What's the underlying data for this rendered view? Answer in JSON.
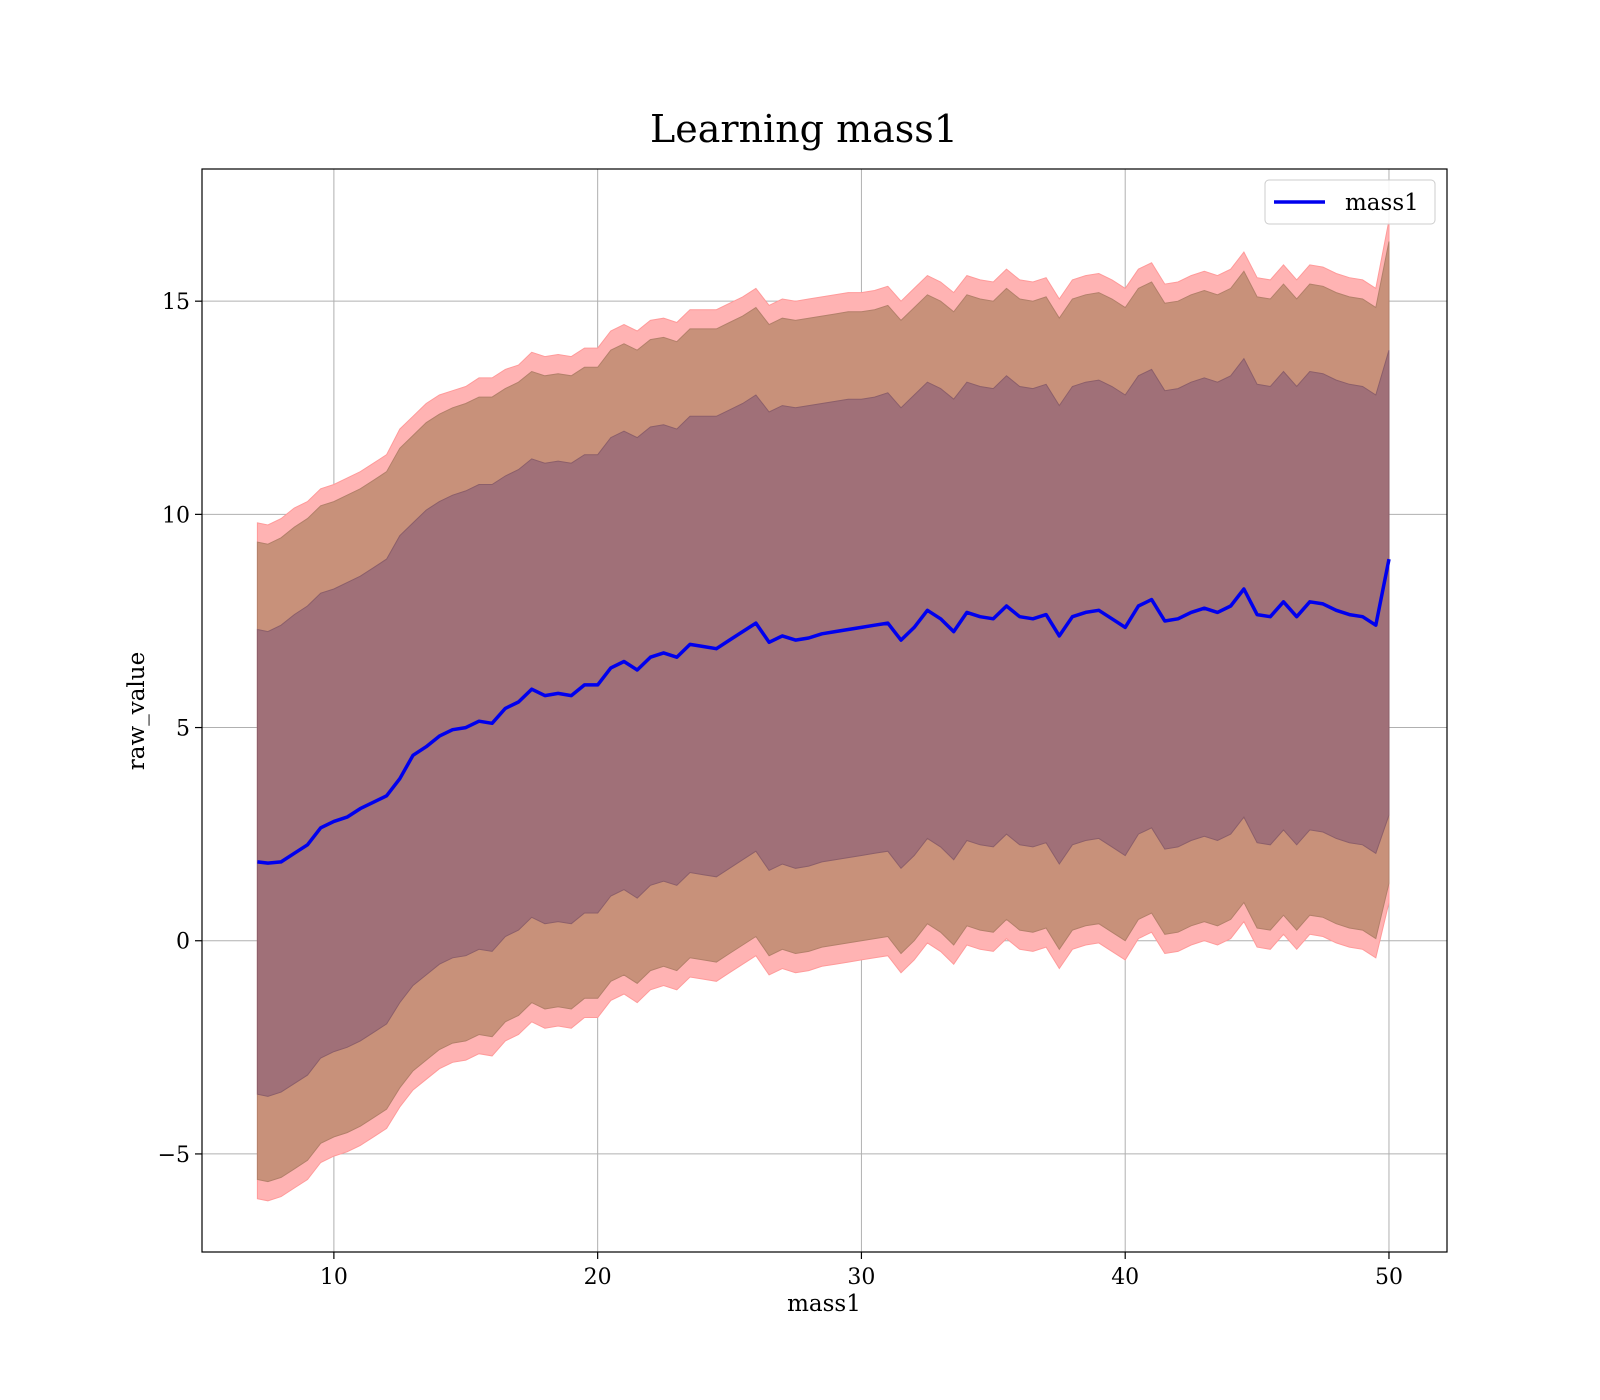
{
  "chart_data": {
    "type": "line",
    "title": "Learning mass1",
    "xlabel": "mass1",
    "ylabel": "raw_value",
    "xlim": [
      5,
      52.2
    ],
    "ylim": [
      -7.3,
      18.1
    ],
    "xticks": [
      10,
      20,
      30,
      40,
      50
    ],
    "yticks": [
      -5,
      0,
      5,
      10,
      15
    ],
    "xtick_labels": [
      "10",
      "20",
      "30",
      "40",
      "50"
    ],
    "ytick_labels": [
      "−5",
      "0",
      "5",
      "10",
      "15"
    ],
    "grid": true,
    "legend": {
      "placement": "top-right",
      "entries": [
        "mass1"
      ]
    },
    "colors": {
      "line": "#0000ee",
      "band_outer": "#ffb3b3",
      "band_middle": "#c8917a",
      "band_inner": "#a07078",
      "grid": "#b0b0b0"
    },
    "x": [
      7.1,
      7.5,
      8,
      8.5,
      9,
      9.5,
      10,
      10.5,
      11,
      11.5,
      12,
      12.5,
      13,
      13.5,
      14,
      14.5,
      15,
      15.5,
      16,
      16.5,
      17,
      17.5,
      18,
      18.5,
      19,
      19.5,
      20,
      20.5,
      21,
      21.5,
      22,
      22.5,
      23,
      23.5,
      24,
      24.5,
      25,
      25.5,
      26,
      26.5,
      27,
      27.5,
      28,
      28.5,
      29,
      29.5,
      30,
      30.5,
      31,
      31.5,
      32,
      32.5,
      33,
      33.5,
      34,
      34.5,
      35,
      35.5,
      36,
      36.5,
      37,
      37.5,
      38,
      38.5,
      39,
      39.5,
      40,
      40.5,
      41,
      41.5,
      42,
      42.5,
      43,
      43.5,
      44,
      44.5,
      45,
      45.5,
      46,
      46.5,
      47,
      47.5,
      48,
      48.5,
      49,
      49.5,
      50
    ],
    "series": [
      {
        "name": "mass1",
        "values": [
          1.85,
          1.82,
          1.85,
          2.05,
          2.25,
          2.65,
          2.8,
          2.9,
          3.1,
          3.25,
          3.4,
          3.8,
          4.35,
          4.55,
          4.8,
          4.95,
          5.0,
          5.15,
          5.1,
          5.45,
          5.6,
          5.9,
          5.75,
          5.8,
          5.75,
          6.0,
          6.0,
          6.4,
          6.55,
          6.35,
          6.65,
          6.75,
          6.65,
          6.95,
          6.9,
          6.85,
          7.05,
          7.25,
          7.45,
          7.0,
          7.15,
          7.05,
          7.1,
          7.2,
          7.25,
          7.3,
          7.35,
          7.4,
          7.45,
          7.05,
          7.35,
          7.75,
          7.55,
          7.25,
          7.7,
          7.6,
          7.55,
          7.85,
          7.6,
          7.55,
          7.65,
          7.15,
          7.6,
          7.7,
          7.75,
          7.55,
          7.35,
          7.85,
          8.0,
          7.5,
          7.55,
          7.7,
          7.8,
          7.7,
          7.85,
          8.25,
          7.65,
          7.6,
          7.95,
          7.6,
          7.95,
          7.9,
          7.75,
          7.65,
          7.6,
          7.4,
          8.95
        ]
      }
    ],
    "bands": [
      {
        "upper": [
          9.8,
          9.75,
          9.9,
          10.15,
          10.3,
          10.6,
          10.7,
          10.85,
          11.0,
          11.2,
          11.4,
          12.0,
          12.3,
          12.6,
          12.8,
          12.9,
          13.0,
          13.2,
          13.2,
          13.4,
          13.5,
          13.8,
          13.7,
          13.75,
          13.7,
          13.9,
          13.9,
          14.3,
          14.45,
          14.3,
          14.55,
          14.6,
          14.5,
          14.8,
          14.8,
          14.8,
          14.95,
          15.1,
          15.3,
          14.9,
          15.05,
          15.0,
          15.05,
          15.1,
          15.15,
          15.2,
          15.2,
          15.25,
          15.35,
          15.0,
          15.3,
          15.6,
          15.45,
          15.2,
          15.6,
          15.5,
          15.45,
          15.75,
          15.5,
          15.45,
          15.55,
          15.05,
          15.5,
          15.6,
          15.65,
          15.5,
          15.3,
          15.75,
          15.9,
          15.4,
          15.45,
          15.6,
          15.7,
          15.6,
          15.75,
          16.15,
          15.55,
          15.5,
          15.85,
          15.5,
          15.85,
          15.8,
          15.65,
          15.55,
          15.5,
          15.3,
          16.9
        ],
        "lower": [
          -6.05,
          -6.1,
          -6.0,
          -5.8,
          -5.6,
          -5.2,
          -5.05,
          -4.95,
          -4.8,
          -4.6,
          -4.4,
          -3.9,
          -3.5,
          -3.25,
          -3.0,
          -2.85,
          -2.8,
          -2.65,
          -2.7,
          -2.35,
          -2.2,
          -1.9,
          -2.05,
          -2.0,
          -2.05,
          -1.8,
          -1.8,
          -1.4,
          -1.25,
          -1.45,
          -1.15,
          -1.05,
          -1.15,
          -0.85,
          -0.9,
          -0.95,
          -0.75,
          -0.55,
          -0.35,
          -0.8,
          -0.65,
          -0.75,
          -0.7,
          -0.6,
          -0.55,
          -0.5,
          -0.45,
          -0.4,
          -0.35,
          -0.75,
          -0.45,
          -0.05,
          -0.25,
          -0.55,
          -0.1,
          -0.2,
          -0.25,
          0.05,
          -0.2,
          -0.25,
          -0.15,
          -0.65,
          -0.2,
          -0.1,
          -0.05,
          -0.25,
          -0.45,
          0.05,
          0.2,
          -0.3,
          -0.25,
          -0.1,
          0.0,
          -0.1,
          0.05,
          0.45,
          -0.15,
          -0.2,
          0.15,
          -0.2,
          0.15,
          0.1,
          -0.05,
          -0.15,
          -0.2,
          -0.4,
          0.9
        ]
      },
      {
        "upper": [
          9.35,
          9.3,
          9.45,
          9.7,
          9.9,
          10.2,
          10.3,
          10.45,
          10.6,
          10.8,
          11.0,
          11.55,
          11.85,
          12.15,
          12.35,
          12.5,
          12.6,
          12.75,
          12.75,
          12.95,
          13.1,
          13.35,
          13.25,
          13.3,
          13.25,
          13.45,
          13.45,
          13.85,
          14.0,
          13.85,
          14.1,
          14.15,
          14.05,
          14.35,
          14.35,
          14.35,
          14.5,
          14.65,
          14.85,
          14.45,
          14.6,
          14.55,
          14.6,
          14.65,
          14.7,
          14.75,
          14.75,
          14.8,
          14.9,
          14.55,
          14.85,
          15.15,
          15.0,
          14.75,
          15.15,
          15.05,
          15.0,
          15.3,
          15.05,
          15.0,
          15.1,
          14.6,
          15.05,
          15.15,
          15.2,
          15.05,
          14.85,
          15.3,
          15.45,
          14.95,
          15.0,
          15.15,
          15.25,
          15.15,
          15.3,
          15.7,
          15.1,
          15.05,
          15.4,
          15.05,
          15.4,
          15.35,
          15.2,
          15.1,
          15.05,
          14.85,
          16.4
        ],
        "lower": [
          -5.6,
          -5.65,
          -5.55,
          -5.35,
          -5.15,
          -4.75,
          -4.6,
          -4.5,
          -4.35,
          -4.15,
          -3.95,
          -3.45,
          -3.05,
          -2.8,
          -2.55,
          -2.4,
          -2.35,
          -2.2,
          -2.25,
          -1.9,
          -1.75,
          -1.45,
          -1.6,
          -1.55,
          -1.6,
          -1.35,
          -1.35,
          -0.95,
          -0.8,
          -1.0,
          -0.7,
          -0.6,
          -0.7,
          -0.4,
          -0.45,
          -0.5,
          -0.3,
          -0.1,
          0.1,
          -0.35,
          -0.2,
          -0.3,
          -0.25,
          -0.15,
          -0.1,
          -0.05,
          0.0,
          0.05,
          0.1,
          -0.3,
          0.0,
          0.4,
          0.2,
          -0.1,
          0.35,
          0.25,
          0.2,
          0.5,
          0.25,
          0.2,
          0.3,
          -0.2,
          0.25,
          0.35,
          0.4,
          0.2,
          0.0,
          0.5,
          0.65,
          0.15,
          0.2,
          0.35,
          0.45,
          0.35,
          0.5,
          0.9,
          0.3,
          0.25,
          0.6,
          0.25,
          0.6,
          0.55,
          0.4,
          0.3,
          0.25,
          0.05,
          1.35
        ]
      },
      {
        "upper": [
          7.3,
          7.25,
          7.4,
          7.65,
          7.85,
          8.15,
          8.25,
          8.4,
          8.55,
          8.75,
          8.95,
          9.5,
          9.8,
          10.1,
          10.3,
          10.45,
          10.55,
          10.7,
          10.7,
          10.9,
          11.05,
          11.3,
          11.2,
          11.25,
          11.2,
          11.4,
          11.4,
          11.8,
          11.95,
          11.8,
          12.05,
          12.1,
          12.0,
          12.3,
          12.3,
          12.3,
          12.45,
          12.6,
          12.8,
          12.4,
          12.55,
          12.5,
          12.55,
          12.6,
          12.65,
          12.7,
          12.7,
          12.75,
          12.85,
          12.5,
          12.8,
          13.1,
          12.95,
          12.7,
          13.1,
          13.0,
          12.95,
          13.25,
          13.0,
          12.95,
          13.05,
          12.55,
          13.0,
          13.1,
          13.15,
          13.0,
          12.8,
          13.25,
          13.4,
          12.9,
          12.95,
          13.1,
          13.2,
          13.1,
          13.25,
          13.65,
          13.05,
          13.0,
          13.35,
          13.0,
          13.35,
          13.3,
          13.15,
          13.05,
          13.0,
          12.8,
          13.85
        ],
        "lower": [
          -3.6,
          -3.65,
          -3.55,
          -3.35,
          -3.15,
          -2.75,
          -2.6,
          -2.5,
          -2.35,
          -2.15,
          -1.95,
          -1.45,
          -1.05,
          -0.8,
          -0.55,
          -0.4,
          -0.35,
          -0.2,
          -0.25,
          0.1,
          0.25,
          0.55,
          0.4,
          0.45,
          0.4,
          0.65,
          0.65,
          1.05,
          1.2,
          1.0,
          1.3,
          1.4,
          1.3,
          1.6,
          1.55,
          1.5,
          1.7,
          1.9,
          2.1,
          1.65,
          1.8,
          1.7,
          1.75,
          1.85,
          1.9,
          1.95,
          2.0,
          2.05,
          2.1,
          1.7,
          2.0,
          2.4,
          2.2,
          1.9,
          2.35,
          2.25,
          2.2,
          2.5,
          2.25,
          2.2,
          2.3,
          1.8,
          2.25,
          2.35,
          2.4,
          2.2,
          2.0,
          2.5,
          2.65,
          2.15,
          2.2,
          2.35,
          2.45,
          2.35,
          2.5,
          2.9,
          2.3,
          2.25,
          2.6,
          2.25,
          2.6,
          2.55,
          2.4,
          2.3,
          2.25,
          2.05,
          2.95
        ]
      }
    ]
  }
}
